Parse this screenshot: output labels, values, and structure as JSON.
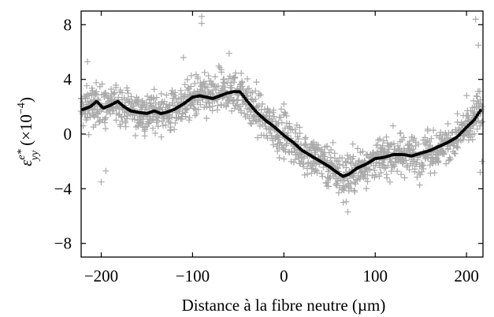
{
  "chart_data": {
    "type": "scatter",
    "xlabel": "Distance à la fibre neutre (µm)",
    "ylabel": {
      "symbol": "ε",
      "superscript": "e*",
      "subscript": "yy",
      "scale": "(×10",
      "scale_exp": "−4",
      "scale_close": ")"
    },
    "xlim": [
      -222,
      218
    ],
    "ylim": [
      -9,
      9
    ],
    "x_ticks": [
      -200,
      -100,
      0,
      100,
      200
    ],
    "x_tick_labels": [
      "−200",
      "−100",
      "0",
      "100",
      "200"
    ],
    "y_ticks": [
      -8,
      -4,
      0,
      4,
      8
    ],
    "y_tick_labels": [
      "−8",
      "−4",
      "0",
      "4",
      "8"
    ],
    "grid": false,
    "legend": "none",
    "colors": {
      "scatter": "#aaaaaa",
      "mean": "#000000"
    },
    "series": [
      {
        "marker": "plus",
        "kind": "scatter-band",
        "spread": 1.4,
        "outlier_extremes": [
          [
            -90,
            8.6
          ],
          [
            -90,
            8.1
          ],
          [
            -60,
            5.9
          ],
          [
            -110,
            5.6
          ],
          [
            -215,
            5.3
          ],
          [
            -200,
            -3.5
          ],
          [
            -195,
            -2.7
          ],
          [
            70,
            -5.7
          ],
          [
            65,
            -5.0
          ],
          [
            60,
            -4.3
          ],
          [
            210,
            8.4
          ],
          [
            213,
            6.5
          ],
          [
            215,
            -2.8
          ],
          [
            217,
            -2.0
          ],
          [
            0,
            2.2
          ],
          [
            -30,
            3.8
          ]
        ]
      },
      {
        "marker": "dot",
        "kind": "mean-curve",
        "x": [
          -220,
          -212,
          -205,
          -198,
          -190,
          -182,
          -175,
          -168,
          -160,
          -150,
          -142,
          -135,
          -128,
          -120,
          -110,
          -100,
          -92,
          -85,
          -78,
          -70,
          -62,
          -55,
          -48,
          -40,
          -30,
          -20,
          -10,
          0,
          10,
          20,
          30,
          40,
          50,
          58,
          65,
          72,
          80,
          90,
          100,
          110,
          120,
          130,
          140,
          150,
          160,
          170,
          180,
          190,
          200,
          208,
          214,
          218
        ],
        "y": [
          1.8,
          2.0,
          2.4,
          1.9,
          2.1,
          2.4,
          2.0,
          1.7,
          1.6,
          1.5,
          1.7,
          1.5,
          1.6,
          1.8,
          2.2,
          2.7,
          2.8,
          2.7,
          2.6,
          2.8,
          3.0,
          3.1,
          3.1,
          2.4,
          1.6,
          1.0,
          0.5,
          -0.1,
          -0.6,
          -1.2,
          -1.6,
          -2.0,
          -2.4,
          -2.8,
          -3.1,
          -2.9,
          -2.5,
          -2.2,
          -1.8,
          -1.7,
          -1.5,
          -1.5,
          -1.6,
          -1.4,
          -1.2,
          -0.9,
          -0.6,
          -0.2,
          0.5,
          1.0,
          1.6,
          2.0
        ]
      }
    ]
  }
}
